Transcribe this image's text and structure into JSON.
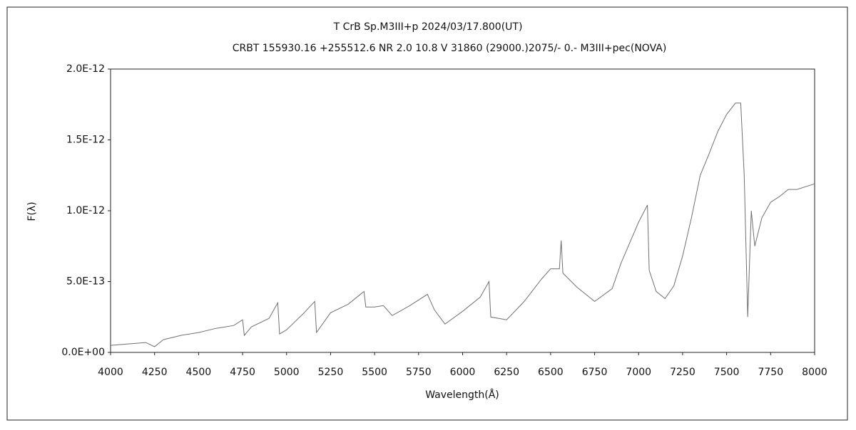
{
  "chart_data": {
    "type": "line",
    "title": "T CrB   Sp.M3III+p   2024/03/17.800(UT)",
    "subtitle": "CRBT 155930.16 +255512.6 NR 2.0 10.8 V 31860 (29000.)2075/-  0.- M3III+pec(NOVA)",
    "x_label": "Wavelength(Å)",
    "y_label": "F(λ)",
    "x": [
      4000,
      4100,
      4200,
      4250,
      4300,
      4400,
      4500,
      4600,
      4700,
      4750,
      4760,
      4800,
      4900,
      4950,
      4960,
      5000,
      5100,
      5160,
      5170,
      5250,
      5350,
      5440,
      5450,
      5500,
      5550,
      5600,
      5700,
      5800,
      5840,
      5900,
      6000,
      6100,
      6150,
      6160,
      6250,
      6350,
      6450,
      6500,
      6550,
      6560,
      6570,
      6650,
      6750,
      6850,
      6900,
      7000,
      7050,
      7060,
      7100,
      7150,
      7200,
      7250,
      7300,
      7350,
      7400,
      7450,
      7500,
      7550,
      7580,
      7600,
      7620,
      7640,
      7660,
      7700,
      7750,
      7800,
      7850,
      7900,
      8000
    ],
    "series": [
      {
        "name": "F(λ)",
        "color": "#707070",
        "values": [
          5e-14,
          6e-14,
          7e-14,
          4e-14,
          9e-14,
          1.2e-13,
          1.4e-13,
          1.7e-13,
          1.9e-13,
          2.3e-13,
          1.2e-13,
          1.8e-13,
          2.4e-13,
          3.5e-13,
          1.3e-13,
          1.6e-13,
          2.8e-13,
          3.6e-13,
          1.4e-13,
          2.8e-13,
          3.4e-13,
          4.3e-13,
          3.2e-13,
          3.2e-13,
          3.3e-13,
          2.6e-13,
          3.3e-13,
          4.1e-13,
          3e-13,
          2e-13,
          2.9e-13,
          3.9e-13,
          5e-13,
          2.5e-13,
          2.3e-13,
          3.6e-13,
          5.2e-13,
          5.9e-13,
          5.9e-13,
          7.9e-13,
          5.6e-13,
          4.6e-13,
          3.6e-13,
          4.5e-13,
          6.3e-13,
          9.2e-13,
          1.04e-12,
          5.8e-13,
          4.3e-13,
          3.8e-13,
          4.7e-13,
          6.8e-13,
          9.5e-13,
          1.25e-12,
          1.4e-12,
          1.56e-12,
          1.68e-12,
          1.76e-12,
          1.76e-12,
          1.25e-12,
          2.5e-13,
          1e-12,
          7.5e-13,
          9.5e-13,
          1.06e-12,
          1.1e-12,
          1.15e-12,
          1.15e-12,
          1.19e-12
        ]
      }
    ],
    "xlim": [
      4000,
      8000
    ],
    "xticks": [
      4000,
      4250,
      4500,
      4750,
      5000,
      5250,
      5500,
      5750,
      6000,
      6250,
      6500,
      6750,
      7000,
      7250,
      7500,
      7750,
      8000
    ],
    "ylim": [
      0,
      2e-12
    ],
    "yticks": [
      {
        "value": 0,
        "label": "0.0E+00"
      },
      {
        "value": 5e-13,
        "label": "5.0E-13"
      },
      {
        "value": 1e-12,
        "label": "1.0E-12"
      },
      {
        "value": 1.5e-12,
        "label": "1.5E-12"
      },
      {
        "value": 2e-12,
        "label": "2.0E-12"
      }
    ]
  }
}
